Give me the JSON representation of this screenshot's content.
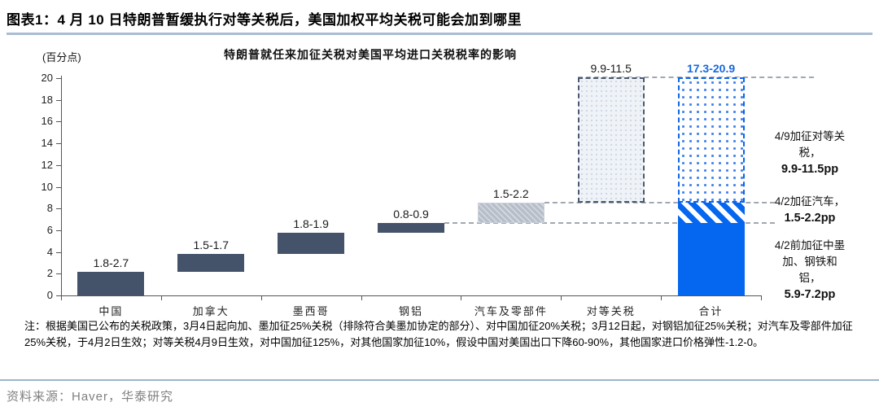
{
  "page": {
    "title": "图表1：4 月 10 日特朗普暂缓执行对等关税后，美国加权平均关税可能会加到哪里"
  },
  "footnote": {
    "text": "注：根据美国已公布的关税政策，3月4日起向加、墨加征25%关税（排除符合美墨加协定的部分）、对中国加征20%关税；3月12日起，对钢铝加征25%关税；对汽车及零部件加征25%关税，于4月2日生效；对等关税4月9日生效，对中国加征125%，对其他国家加征10%，假设中国对美国出口下降60-90%，其他国家进口价格弹性-1.2-0。"
  },
  "source": {
    "text": "资料来源：Haver，华泰研究"
  },
  "colors": {
    "dark_slate": "#44536a",
    "bright_blue": "#0566f0",
    "gray_bar": "#b6bec9",
    "blue_label": "#1668dd",
    "title_rule": "#a9bdd2",
    "source_rule": "#9cb4ca",
    "source_text": "#808080"
  },
  "chart_data": {
    "type": "bar",
    "subtype": "waterfall",
    "title": "特朗普就任来加征关税对美国平均进口关税税率的影响",
    "unit_label": "(百分点)",
    "ylabel": "百分点",
    "ylim": [
      0,
      20
    ],
    "yticks": [
      0,
      2,
      4,
      6,
      8,
      10,
      12,
      14,
      16,
      18,
      20
    ],
    "grid": false,
    "categories": [
      "中国",
      "加拿大",
      "墨西哥",
      "钢铝",
      "汽车及零部件",
      "对等关税",
      "合计"
    ],
    "bars": [
      {
        "category": "中国",
        "label": "1.8-2.7",
        "label_color": "#1a1a1a",
        "segments": [
          {
            "from": 0,
            "to": 2.2,
            "style": "solid-dark"
          }
        ]
      },
      {
        "category": "加拿大",
        "label": "1.5-1.7",
        "label_color": "#1a1a1a",
        "segments": [
          {
            "from": 2.2,
            "to": 3.8,
            "style": "solid-dark"
          }
        ]
      },
      {
        "category": "墨西哥",
        "label": "1.8-1.9",
        "label_color": "#1a1a1a",
        "segments": [
          {
            "from": 3.8,
            "to": 5.75,
            "style": "solid-dark"
          }
        ]
      },
      {
        "category": "钢铝",
        "label": "0.8-0.9",
        "label_color": "#1a1a1a",
        "segments": [
          {
            "from": 5.75,
            "to": 6.7,
            "style": "solid-dark"
          }
        ]
      },
      {
        "category": "汽车及零部件",
        "label": "1.5-2.2",
        "label_color": "#1a1a1a",
        "segments": [
          {
            "from": 6.7,
            "to": 8.55,
            "style": "gray-hatch"
          }
        ]
      },
      {
        "category": "对等关税",
        "label": "9.9-11.5",
        "label_color": "#1a1a1a",
        "segments": [
          {
            "from": 8.55,
            "to": 20.05,
            "style": "dashed-outline-dotted-light"
          }
        ]
      },
      {
        "category": "合计",
        "label": "17.3-20.9",
        "label_color": "#1668dd",
        "segments": [
          {
            "from": 0,
            "to": 6.7,
            "style": "solid-blue"
          },
          {
            "from": 6.7,
            "to": 8.55,
            "style": "blue-diagonal-hatch"
          },
          {
            "from": 8.55,
            "to": 20.05,
            "style": "blue-dashed-dotted"
          }
        ]
      }
    ],
    "connector_levels": [
      {
        "value": 20.05
      },
      {
        "value": 8.55
      },
      {
        "value": 6.7
      }
    ],
    "annotations": [
      {
        "desc": "4/9加征对等关\n税，",
        "value": "9.9-11.5pp"
      },
      {
        "desc": "4/2加征汽车，",
        "value": "1.5-2.2pp"
      },
      {
        "desc": "4/2前加征中墨\n加、钢铁和\n铝，",
        "value": "5.9-7.2pp"
      }
    ]
  }
}
